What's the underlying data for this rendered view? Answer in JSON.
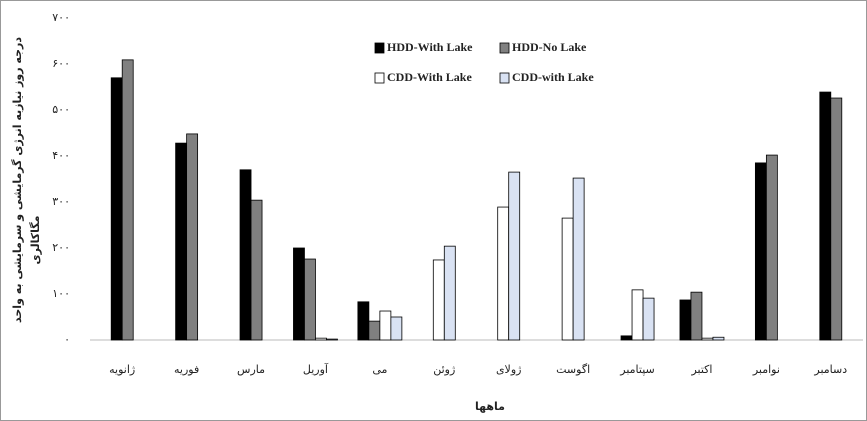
{
  "chart_data": {
    "type": "bar",
    "y_label": [
      "درجه روز نیازبه انرژی گرمایشی و سرمایشی به واحد",
      "مگاکالری"
    ],
    "x_label": "ماهها",
    "categories": [
      "ژانویه",
      "فوریه",
      "مارس",
      "آوریل",
      "می",
      "ژوئن",
      "ژولای",
      "اگوست",
      "سپتامبر",
      "اکتبر",
      "نوامبر",
      "دسامبر"
    ],
    "series": [
      {
        "name": "HDD-With Lake",
        "color": "#000000",
        "values": [
          570,
          428,
          370,
          200,
          83,
          0,
          0,
          0,
          9,
          87,
          385,
          539
        ]
      },
      {
        "name": "HDD-No Lake",
        "color": "#808080",
        "values": [
          609,
          448,
          304,
          176,
          41,
          0,
          0,
          0,
          0,
          104,
          402,
          526
        ]
      },
      {
        "name": "CDD-With Lake",
        "color": "#ffffff",
        "values": [
          0,
          0,
          0,
          4,
          63,
          174,
          289,
          265,
          109,
          4,
          0,
          0
        ]
      },
      {
        "name": "CDD-with Lake",
        "color": "#d9e2f3",
        "values": [
          0,
          0,
          0,
          2,
          50,
          204,
          365,
          352,
          91,
          6,
          0,
          0
        ]
      }
    ],
    "ylim": [
      0,
      700
    ],
    "yticks": [
      {
        "value": 0,
        "label": "۰"
      },
      {
        "value": 100,
        "label": "۱۰۰"
      },
      {
        "value": 200,
        "label": "۲۰۰"
      },
      {
        "value": 300,
        "label": "۳۰۰"
      },
      {
        "value": 400,
        "label": "۴۰۰"
      },
      {
        "value": 500,
        "label": "۵۰۰"
      },
      {
        "value": 600,
        "label": "۶۰۰"
      },
      {
        "value": 700,
        "label": "۷۰۰"
      }
    ],
    "grid": false,
    "legend_position": "top-center"
  }
}
